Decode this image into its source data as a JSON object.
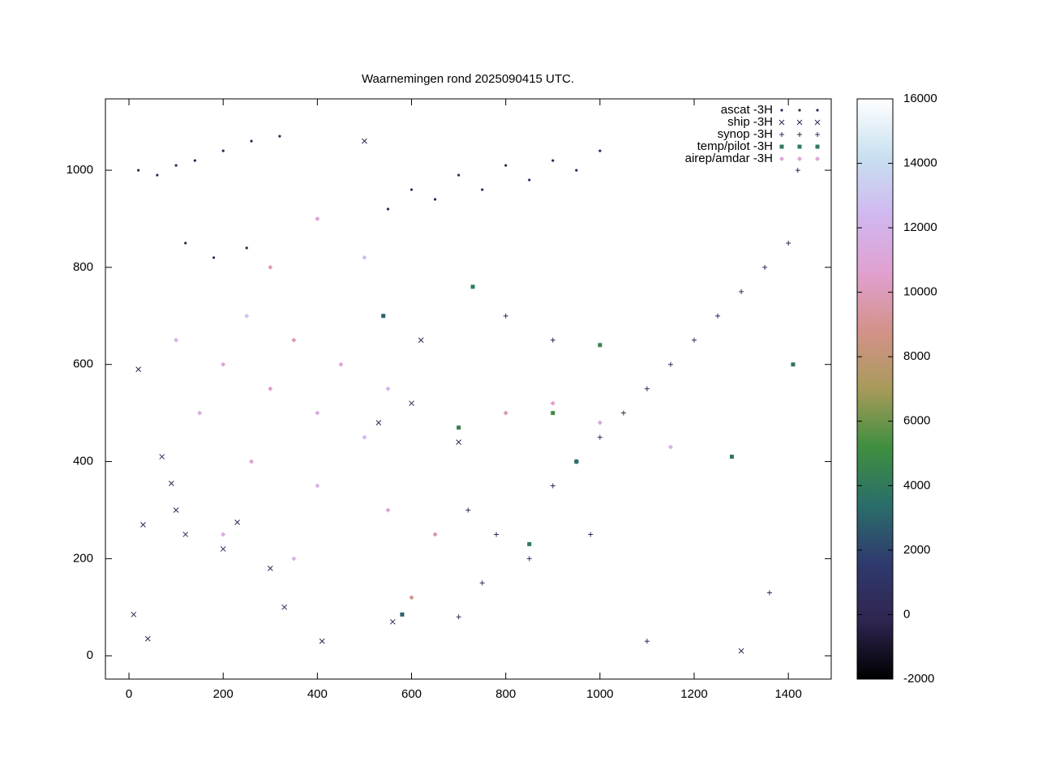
{
  "chart_data": {
    "type": "scatter",
    "title": "Waarnemingen rond 2025090415 UTC.",
    "xlim": [
      -50,
      1491
    ],
    "ylim": [
      -48,
      1147
    ],
    "xticks": [
      0,
      200,
      400,
      600,
      800,
      1000,
      1200,
      1400
    ],
    "yticks": [
      0,
      200,
      400,
      600,
      800,
      1000
    ],
    "legend": "upper right",
    "colorbar": {
      "zlim": [
        -2000,
        16000
      ],
      "zticks": [
        -2000,
        0,
        2000,
        4000,
        6000,
        8000,
        10000,
        12000,
        14000,
        16000
      ],
      "colors": [
        "#000000",
        "#2f2550",
        "#2f3a6e",
        "#2a6e6a",
        "#3f8f3f",
        "#a89a5a",
        "#d4928a",
        "#e0a0d0",
        "#d0b8f0",
        "#c8e0f0",
        "#ffffff"
      ]
    },
    "series": [
      {
        "name": "ascat -3H",
        "marker": "dot",
        "x": [
          20,
          60,
          100,
          140,
          200,
          260,
          320,
          120,
          180,
          250,
          550,
          600,
          650,
          700,
          750,
          800,
          850,
          900,
          950,
          1000
        ],
        "y": [
          1000,
          990,
          1010,
          1020,
          1040,
          1060,
          1070,
          850,
          820,
          840,
          920,
          960,
          940,
          990,
          960,
          1010,
          980,
          1020,
          1000,
          1040
        ],
        "z": [
          0,
          0,
          0,
          0,
          0,
          0,
          0,
          0,
          0,
          0,
          0,
          0,
          0,
          0,
          0,
          0,
          0,
          0,
          0,
          0
        ]
      },
      {
        "name": "ship -3H",
        "marker": "cross",
        "x": [
          10,
          30,
          70,
          90,
          100,
          120,
          200,
          230,
          300,
          330,
          410,
          40,
          530,
          600,
          560,
          20,
          500,
          620,
          700,
          1300
        ],
        "y": [
          85,
          270,
          410,
          355,
          300,
          250,
          220,
          275,
          180,
          100,
          30,
          35,
          480,
          520,
          70,
          590,
          1060,
          650,
          440,
          10
        ],
        "z": [
          0,
          0,
          0,
          0,
          0,
          0,
          0,
          0,
          0,
          0,
          0,
          0,
          0,
          0,
          0,
          0,
          0,
          0,
          0,
          0
        ]
      },
      {
        "name": "synop -3H",
        "marker": "plus",
        "x": [
          720,
          780,
          850,
          900,
          950,
          1000,
          1050,
          1100,
          1150,
          1200,
          1250,
          1300,
          1350,
          1400,
          1420,
          900,
          800,
          750,
          700,
          1100,
          1360,
          980
        ],
        "y": [
          300,
          250,
          200,
          350,
          400,
          450,
          500,
          550,
          600,
          650,
          700,
          750,
          800,
          850,
          1000,
          650,
          700,
          150,
          80,
          30,
          130,
          250
        ],
        "z": [
          500,
          300,
          800,
          200,
          600,
          400,
          300,
          200,
          150,
          300,
          200,
          100,
          150,
          100,
          50,
          100,
          200,
          700,
          900,
          100,
          200,
          300
        ]
      },
      {
        "name": "temp/pilot -3H",
        "marker": "square",
        "x": [
          580,
          850,
          950,
          700,
          900,
          1280,
          540,
          730,
          1410,
          1000
        ],
        "y": [
          85,
          230,
          400,
          470,
          500,
          410,
          700,
          760,
          600,
          640
        ],
        "z": [
          3000,
          4000,
          3500,
          4500,
          5000,
          4000,
          3000,
          4200,
          3800,
          4600
        ]
      },
      {
        "name": "airep/amdar -3H",
        "marker": "diamond",
        "x": [
          100,
          200,
          300,
          400,
          500,
          250,
          350,
          450,
          550,
          150,
          260,
          400,
          550,
          650,
          300,
          400,
          500,
          200,
          350,
          600,
          800,
          900,
          1000,
          1150
        ],
        "y": [
          650,
          600,
          550,
          500,
          450,
          700,
          650,
          600,
          550,
          500,
          400,
          350,
          300,
          250,
          800,
          900,
          820,
          250,
          200,
          120,
          500,
          520,
          480,
          430
        ],
        "z": [
          12000,
          11000,
          10500,
          11500,
          12500,
          13000,
          10000,
          11000,
          12000,
          11500,
          10500,
          12000,
          11000,
          9500,
          10000,
          11000,
          12500,
          11500,
          12000,
          9000,
          10000,
          10500,
          11000,
          12000
        ]
      }
    ]
  }
}
